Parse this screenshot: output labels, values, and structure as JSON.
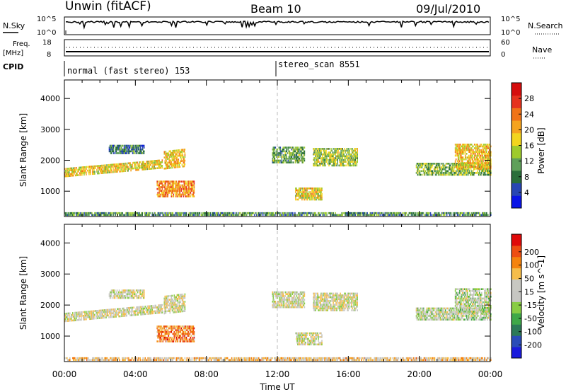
{
  "header": {
    "station": "Unwin (fitACF)",
    "beam": "Beam 10",
    "date": "09/Jul/2010"
  },
  "summary_panels": {
    "nsky": {
      "label": "N.Sky",
      "ticks": [
        "10^5",
        "10^0"
      ],
      "right_label": "N.Search",
      "right_ticks": [
        "10^5",
        "10^0"
      ]
    },
    "freq": {
      "label_top": "Freq.",
      "label_bottom": "[MHz]",
      "ticks": [
        "18",
        "8"
      ],
      "right_label": "Nave",
      "right_ticks": [
        "60",
        "0"
      ]
    },
    "cpid": {
      "label": "CPID",
      "segments": [
        "normal (fast stereo) 153",
        "stereo_scan 8551"
      ]
    }
  },
  "colors": {
    "power": [
      "#0a14e6",
      "#2846b4",
      "#2a6e3a",
      "#5fa05a",
      "#9ecb2d",
      "#f2d51e",
      "#f5a31e",
      "#f07318",
      "#e6321e",
      "#d50d0d"
    ],
    "velocity": [
      "#e00a0a",
      "#ee4e12",
      "#f5830d",
      "#f5bd4a",
      "#c8c8c2",
      "#c6c6c2",
      "#88cc44",
      "#3fa848",
      "#2c7a58",
      "#2a4cb8",
      "#1a1adc"
    ]
  },
  "chart_data": [
    {
      "type": "heatmap",
      "name": "power",
      "ylabel": "Slant Range [km]",
      "xlabel": "Time UT",
      "x_ticks": [
        "00:00",
        "04:00",
        "08:00",
        "12:00",
        "16:00",
        "20:00",
        "00:00"
      ],
      "y_ticks": [
        "1000",
        "2000",
        "3000",
        "4000"
      ],
      "ylim": [
        180,
        4600
      ],
      "xlim_hours": [
        0,
        24
      ],
      "colorbar_label": "Power [dB]",
      "colorbar_ticks": [
        "4",
        "8",
        "12",
        "16",
        "20",
        "24",
        "28"
      ],
      "regions": [
        {
          "t0": 0.0,
          "t1": 5.5,
          "r0": 1450,
          "r1": 1750,
          "slope": 280,
          "level": 0.55
        },
        {
          "t0": 5.6,
          "t1": 6.8,
          "r0": 1700,
          "r1": 2300,
          "slope": 80,
          "level": 0.6
        },
        {
          "t0": 5.2,
          "t1": 7.3,
          "r0": 800,
          "r1": 1300,
          "slope": 0,
          "level": 0.7
        },
        {
          "t0": 2.5,
          "t1": 4.5,
          "r0": 2200,
          "r1": 2500,
          "slope": 0,
          "level": 0.25
        },
        {
          "t0": 11.7,
          "t1": 13.5,
          "r0": 1900,
          "r1": 2400,
          "slope": 0,
          "level": 0.35
        },
        {
          "t0": 14.0,
          "t1": 16.5,
          "r0": 1800,
          "r1": 2400,
          "slope": 0,
          "level": 0.45
        },
        {
          "t0": 13.0,
          "t1": 14.5,
          "r0": 700,
          "r1": 1100,
          "slope": 0,
          "level": 0.55
        },
        {
          "t0": 19.8,
          "t1": 24.0,
          "r0": 1500,
          "r1": 1900,
          "slope": 0,
          "level": 0.4
        },
        {
          "t0": 22.0,
          "t1": 24.0,
          "r0": 1700,
          "r1": 2500,
          "slope": 0,
          "level": 0.6
        },
        {
          "t0": 0.0,
          "t1": 24.0,
          "r0": 200,
          "r1": 300,
          "slope": 0,
          "level": 0.3
        }
      ]
    },
    {
      "type": "heatmap",
      "name": "velocity",
      "ylabel": "Slant Range [km]",
      "xlabel": "Time UT",
      "x_ticks": [
        "00:00",
        "04:00",
        "08:00",
        "12:00",
        "16:00",
        "20:00",
        "00:00"
      ],
      "y_ticks": [
        "1000",
        "2000",
        "3000",
        "4000"
      ],
      "ylim": [
        180,
        4600
      ],
      "colorbar_label": "Velocity [m s^-1]",
      "colorbar_ticks": [
        "200",
        "100",
        "50",
        "15",
        "-15",
        "-50",
        "-100",
        "-200"
      ],
      "regions": [
        {
          "t0": 0.0,
          "t1": 5.5,
          "r0": 1450,
          "r1": 1750,
          "slope": 280,
          "level": 0.45
        },
        {
          "t0": 5.6,
          "t1": 6.8,
          "r0": 1700,
          "r1": 2300,
          "slope": 80,
          "level": 0.45
        },
        {
          "t0": 5.2,
          "t1": 7.3,
          "r0": 800,
          "r1": 1300,
          "slope": 0,
          "level": 0.22
        },
        {
          "t0": 2.5,
          "t1": 4.5,
          "r0": 2200,
          "r1": 2500,
          "slope": 0,
          "level": 0.45
        },
        {
          "t0": 11.7,
          "t1": 13.5,
          "r0": 1900,
          "r1": 2400,
          "slope": 0,
          "level": 0.45
        },
        {
          "t0": 14.0,
          "t1": 16.5,
          "r0": 1800,
          "r1": 2400,
          "slope": 0,
          "level": 0.45
        },
        {
          "t0": 13.0,
          "t1": 14.5,
          "r0": 700,
          "r1": 1100,
          "slope": 0,
          "level": 0.45
        },
        {
          "t0": 19.8,
          "t1": 24.0,
          "r0": 1500,
          "r1": 1900,
          "slope": 0,
          "level": 0.5
        },
        {
          "t0": 22.0,
          "t1": 24.0,
          "r0": 1700,
          "r1": 2500,
          "slope": 0,
          "level": 0.5
        },
        {
          "t0": 0.0,
          "t1": 24.0,
          "r0": 200,
          "r1": 300,
          "slope": 0,
          "level": 0.35
        }
      ]
    }
  ]
}
